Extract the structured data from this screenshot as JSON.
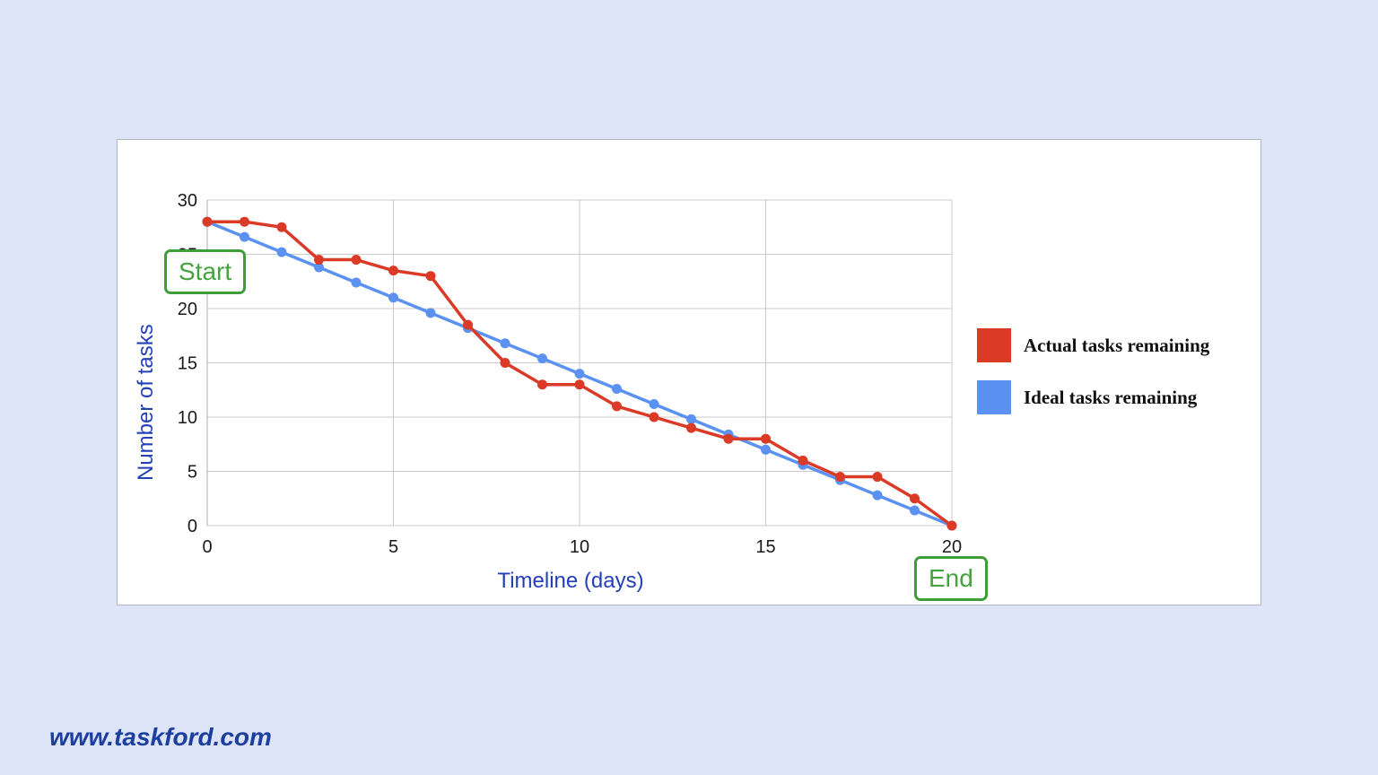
{
  "annotations": {
    "start": "Start",
    "end": "End"
  },
  "footer": {
    "website": "www.taskford.com"
  },
  "chart_data": {
    "type": "line",
    "title": "",
    "xlabel": "Timeline (days)",
    "ylabel": "Number of tasks",
    "xlim": [
      0,
      20
    ],
    "ylim": [
      0,
      30
    ],
    "x_ticks": [
      0,
      5,
      10,
      15,
      20
    ],
    "y_ticks": [
      0,
      5,
      10,
      15,
      20,
      25,
      30
    ],
    "grid": true,
    "legend_position": "right",
    "x": [
      0,
      1,
      2,
      3,
      4,
      5,
      6,
      7,
      8,
      9,
      10,
      11,
      12,
      13,
      14,
      15,
      16,
      17,
      18,
      19,
      20
    ],
    "series": [
      {
        "name": "Actual tasks remaining",
        "color": "#da3a26",
        "values": [
          28,
          28,
          27.5,
          24.5,
          24.5,
          23.5,
          23,
          18.5,
          15,
          13,
          13,
          11,
          10,
          9,
          8,
          8,
          6,
          4.5,
          4.5,
          2.5,
          0
        ]
      },
      {
        "name": "Ideal tasks remaining",
        "color": "#5b92f2",
        "values": [
          28,
          26.6,
          25.2,
          23.8,
          22.4,
          21,
          19.6,
          18.2,
          16.8,
          15.4,
          14,
          12.6,
          11.2,
          9.8,
          8.4,
          7,
          5.6,
          4.2,
          2.8,
          1.4,
          0
        ]
      }
    ]
  }
}
